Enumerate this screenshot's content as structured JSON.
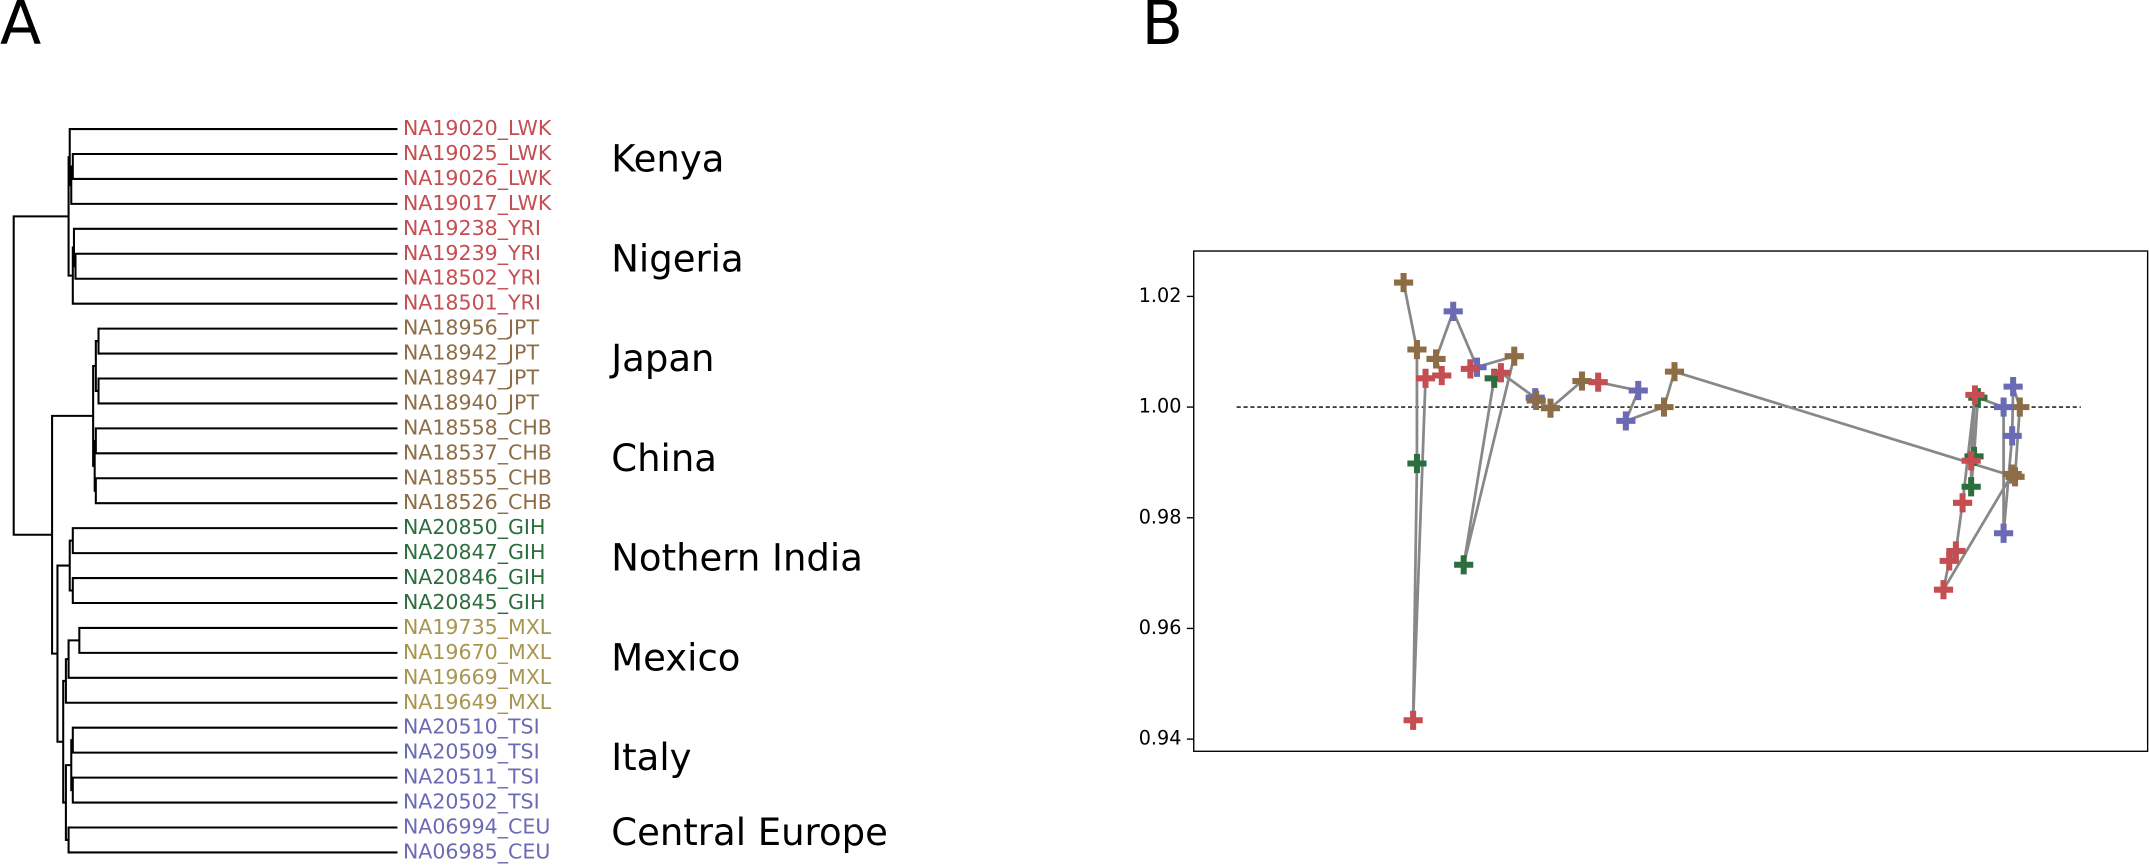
{
  "chart_data": [
    {
      "type": "dendrogram",
      "title": "A",
      "labels": [
        "NA19020_LWK",
        "NA19025_LWK",
        "NA19026_LWK",
        "NA19017_LWK",
        "NA19238_YRI",
        "NA19239_YRI",
        "NA18502_YRI",
        "NA18501_YRI",
        "NA18956_JPT",
        "NA18942_JPT",
        "NA18947_JPT",
        "NA18940_JPT",
        "NA18558_CHB",
        "NA18537_CHB",
        "NA18555_CHB",
        "NA18526_CHB",
        "NA20850_GIH",
        "NA20847_GIH",
        "NA20846_GIH",
        "NA20845_GIH",
        "NA19735_MXL",
        "NA19670_MXL",
        "NA19669_MXL",
        "NA19649_MXL",
        "NA20510_TSI",
        "NA20509_TSI",
        "NA20511_TSI",
        "NA20502_TSI",
        "NA06994_CEU",
        "NA06985_CEU"
      ],
      "colors": [
        "#c44e52",
        "#c44e52",
        "#c44e52",
        "#c44e52",
        "#c44e52",
        "#c44e52",
        "#c44e52",
        "#c44e52",
        "#8c6d46",
        "#8c6d46",
        "#8c6d46",
        "#8c6d46",
        "#8c6d46",
        "#8c6d46",
        "#8c6d46",
        "#8c6d46",
        "#2d6e3e",
        "#2d6e3e",
        "#2d6e3e",
        "#2d6e3e",
        "#a89550",
        "#a89550",
        "#a89550",
        "#a89550",
        "#6b6bb5",
        "#6b6bb5",
        "#6b6bb5",
        "#6b6bb5",
        "#6b6bb5",
        "#6b6bb5"
      ],
      "merges": [
        [
          1,
          2,
          0.846
        ],
        [
          30,
          3,
          0.85
        ],
        [
          0,
          31,
          0.854
        ],
        [
          5,
          6,
          0.839
        ],
        [
          4,
          33,
          0.843
        ],
        [
          34,
          7,
          0.846
        ],
        [
          32,
          35,
          0.857
        ],
        [
          8,
          9,
          0.779
        ],
        [
          10,
          11,
          0.779
        ],
        [
          37,
          38,
          0.786
        ],
        [
          12,
          13,
          0.786
        ],
        [
          14,
          15,
          0.786
        ],
        [
          40,
          41,
          0.789
        ],
        [
          39,
          42,
          0.793
        ],
        [
          16,
          17,
          0.846
        ],
        [
          18,
          19,
          0.846
        ],
        [
          44,
          45,
          0.854
        ],
        [
          20,
          21,
          0.829
        ],
        [
          47,
          22,
          0.857
        ],
        [
          48,
          23,
          0.864
        ],
        [
          24,
          25,
          0.846
        ],
        [
          26,
          27,
          0.846
        ],
        [
          50,
          51,
          0.85
        ],
        [
          28,
          29,
          0.857
        ],
        [
          52,
          53,
          0.864
        ],
        [
          49,
          54,
          0.871
        ],
        [
          46,
          55,
          0.886
        ],
        [
          43,
          56,
          0.9
        ],
        [
          36,
          57,
          1.0
        ]
      ],
      "link_color": "#000000",
      "groups": [
        {
          "label": "Kenya",
          "leaves": [
            0,
            3
          ]
        },
        {
          "label": "Nigeria",
          "leaves": [
            4,
            7
          ]
        },
        {
          "label": "Japan",
          "leaves": [
            8,
            11
          ]
        },
        {
          "label": "China",
          "leaves": [
            12,
            15
          ]
        },
        {
          "label": "Nothern India",
          "leaves": [
            16,
            19
          ]
        },
        {
          "label": "Mexico",
          "leaves": [
            20,
            23
          ]
        },
        {
          "label": "Italy",
          "leaves": [
            24,
            27
          ]
        },
        {
          "label": "Central Europe",
          "leaves": [
            28,
            29
          ]
        }
      ]
    },
    {
      "type": "scatter",
      "title": "B",
      "connect": true,
      "line_color": "#888888",
      "x": [
        22.0,
        23.4,
        23.4,
        23.0,
        24.3,
        26.0,
        25.4,
        27.2,
        29.7,
        29.0,
        33.6,
        28.3,
        31.5,
        32.2,
        35.8,
        35.9,
        37.4,
        40.7,
        42.4,
        46.6,
        45.3,
        49.3,
        50.4,
        86.1,
        86.6,
        85.9,
        85.8,
        84.9,
        84.9,
        82.2,
        81.8,
        81.5,
        81.5,
        81.9,
        80.6,
        79.9,
        79.2,
        78.6,
        85.8
      ],
      "y": [
        1.0225,
        1.0104,
        0.9898,
        0.9434,
        1.0052,
        1.0057,
        1.0087,
        1.0173,
        1.0072,
        1.0069,
        1.0092,
        0.9715,
        1.0052,
        1.0062,
        1.0017,
        1.0012,
        0.9998,
        1.0047,
        1.0045,
        1.003,
        0.9975,
        1.0,
        1.0064,
        0.9874,
        1.0,
        1.0037,
        0.9948,
        0.9772,
        1.0,
        1.0017,
        0.9911,
        0.9856,
        0.9903,
        1.0022,
        0.9827,
        0.974,
        0.9722,
        0.967,
        0.9879
      ],
      "point_colors": [
        "#8c6d46",
        "#8c6d46",
        "#2d6e3e",
        "#c44e52",
        "#c44e52",
        "#c44e52",
        "#8c6d46",
        "#6b6bb5",
        "#6b6bb5",
        "#c44e52",
        "#8c6d46",
        "#2d6e3e",
        "#2d6e3e",
        "#c44e52",
        "#6b6bb5",
        "#8c6d46",
        "#8c6d46",
        "#8c6d46",
        "#c44e52",
        "#6b6bb5",
        "#6b6bb5",
        "#8c6d46",
        "#8c6d46",
        "#8c6d46",
        "#8c6d46",
        "#6b6bb5",
        "#6b6bb5",
        "#6b6bb5",
        "#6b6bb5",
        "#2d6e3e",
        "#2d6e3e",
        "#2d6e3e",
        "#c44e52",
        "#c44e52",
        "#c44e52",
        "#c44e52",
        "#c44e52",
        "#c44e52",
        "#8c6d46"
      ],
      "xlim": [
        0,
        100
      ],
      "ylim": [
        0.9378,
        1.0282
      ],
      "yticks": [
        0.94,
        0.96,
        0.98,
        {
          "value": 1,
          "label": "1.00"
        },
        1.02
      ],
      "hline": {
        "y": 1,
        "x": [
          4.5,
          93
        ]
      }
    }
  ]
}
